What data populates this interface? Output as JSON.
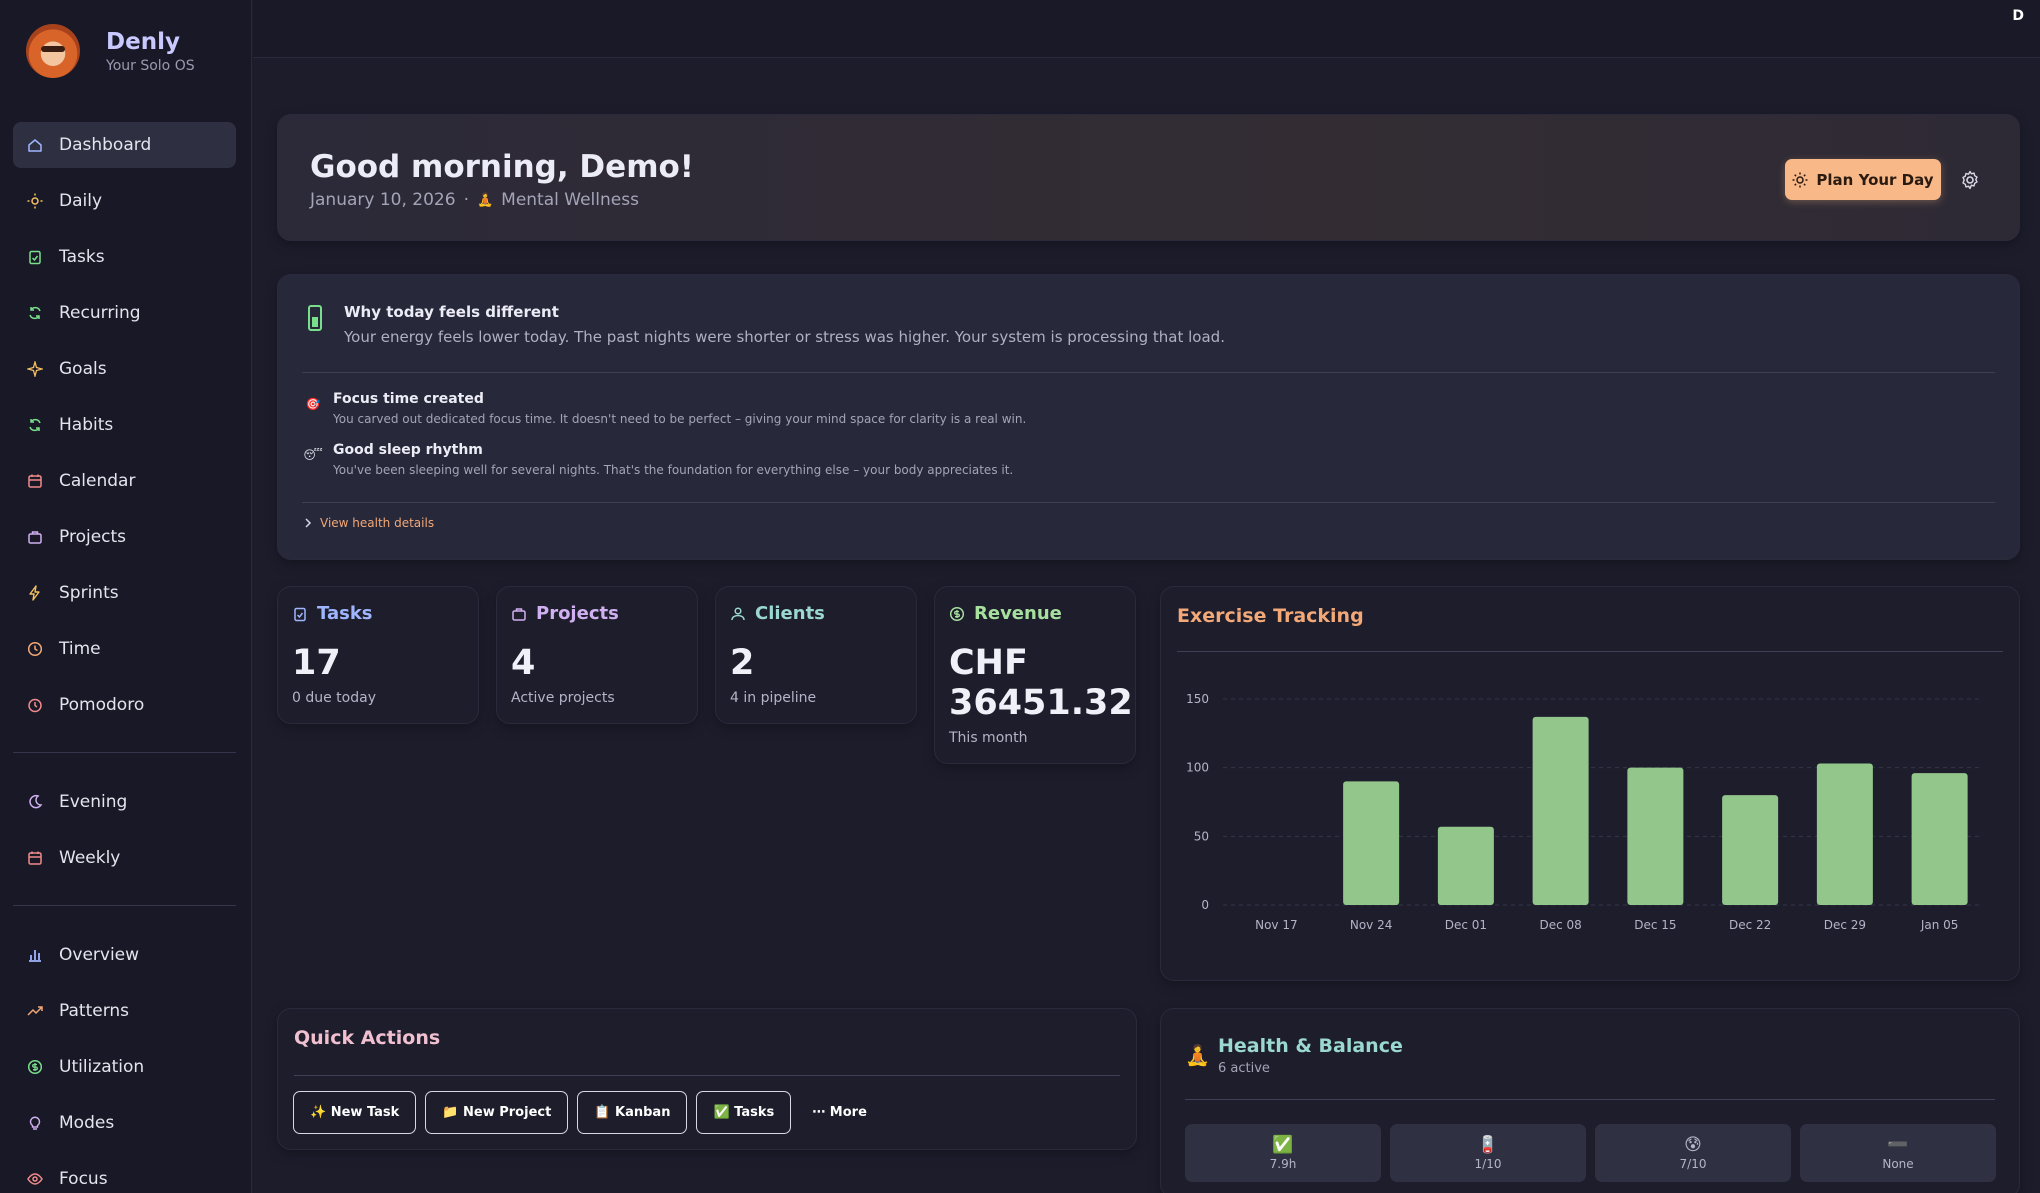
{
  "app": {
    "name": "Denly",
    "tagline": "Your Solo OS",
    "avatar_initial": "D"
  },
  "sidebar": {
    "group1": [
      {
        "label": "Dashboard",
        "icon": "home-icon",
        "active": true
      },
      {
        "label": "Daily",
        "icon": "sun-icon"
      },
      {
        "label": "Tasks",
        "icon": "clipboard-check-icon"
      },
      {
        "label": "Recurring",
        "icon": "refresh-icon"
      },
      {
        "label": "Goals",
        "icon": "sparkle-icon"
      },
      {
        "label": "Habits",
        "icon": "refresh-icon"
      },
      {
        "label": "Calendar",
        "icon": "calendar-icon"
      },
      {
        "label": "Projects",
        "icon": "briefcase-icon"
      },
      {
        "label": "Sprints",
        "icon": "bolt-icon"
      },
      {
        "label": "Time",
        "icon": "clock-icon"
      },
      {
        "label": "Pomodoro",
        "icon": "timer-icon"
      }
    ],
    "group2": [
      {
        "label": "Evening",
        "icon": "moon-icon"
      },
      {
        "label": "Weekly",
        "icon": "calendar-icon"
      }
    ],
    "group3": [
      {
        "label": "Overview",
        "icon": "bar-chart-icon"
      },
      {
        "label": "Patterns",
        "icon": "trending-up-icon"
      },
      {
        "label": "Utilization",
        "icon": "dollar-circle-icon"
      },
      {
        "label": "Modes",
        "icon": "lightbulb-icon"
      },
      {
        "label": "Focus",
        "icon": "eye-icon"
      }
    ]
  },
  "hero": {
    "greeting": "Good morning, Demo!",
    "date": "January 10, 2026",
    "separator": "·",
    "mode_emoji": "🧘",
    "mode": "Mental Wellness",
    "plan_button": "Plan Your Day"
  },
  "insight": {
    "title": "Why today feels different",
    "text": "Your energy feels lower today. The past nights were shorter or stress was higher. Your system is processing that load.",
    "items": [
      {
        "emoji": "🎯",
        "title": "Focus time created",
        "desc": "You carved out dedicated focus time. It doesn't need to be perfect – giving your mind space for clarity is a real win."
      },
      {
        "emoji": "😴",
        "title": "Good sleep rhythm",
        "desc": "You've been sleeping well for several nights. That's the foundation for everything else – your body appreciates it."
      }
    ],
    "link": "View health details"
  },
  "stats": [
    {
      "title": "Tasks",
      "value": "17",
      "label": "0 due today",
      "color": "#9fb6ff",
      "icon": "clipboard-check-icon"
    },
    {
      "title": "Projects",
      "value": "4",
      "label": "Active projects",
      "color": "#d0b0f0",
      "icon": "briefcase-icon"
    },
    {
      "title": "Clients",
      "value": "2",
      "label": "4 in pipeline",
      "color": "#9ad8d0",
      "icon": "users-icon"
    },
    {
      "title": "Revenue",
      "value": "CHF 36451.32",
      "label": "This month",
      "color": "#a8e0a0",
      "icon": "dollar-circle-icon"
    }
  ],
  "exercise": {
    "title": "Exercise Tracking"
  },
  "chart_data": {
    "type": "bar",
    "title": "Exercise Tracking",
    "categories": [
      "Nov 17",
      "Nov 24",
      "Dec 01",
      "Dec 08",
      "Dec 15",
      "Dec 22",
      "Dec 29",
      "Jan 05"
    ],
    "values": [
      0,
      90,
      57,
      137,
      100,
      80,
      103,
      96
    ],
    "yticks": [
      0,
      50,
      100,
      150
    ],
    "ylim": [
      0,
      150
    ],
    "bar_color": "#93c68b",
    "grid": true
  },
  "quick_actions": {
    "title": "Quick Actions",
    "buttons": [
      "✨ New Task",
      "📁 New Project",
      "📋 Kanban",
      "✅ Tasks"
    ],
    "more": "⋯ More"
  },
  "health": {
    "title": "Health & Balance",
    "subtitle": "6 active",
    "tiles": [
      {
        "emoji": "✅",
        "value": "7.9h"
      },
      {
        "emoji": "🪫",
        "value": "1/10"
      },
      {
        "emoji": "😰",
        "value": "7/10"
      },
      {
        "emoji": "➖",
        "value": "None"
      }
    ]
  }
}
